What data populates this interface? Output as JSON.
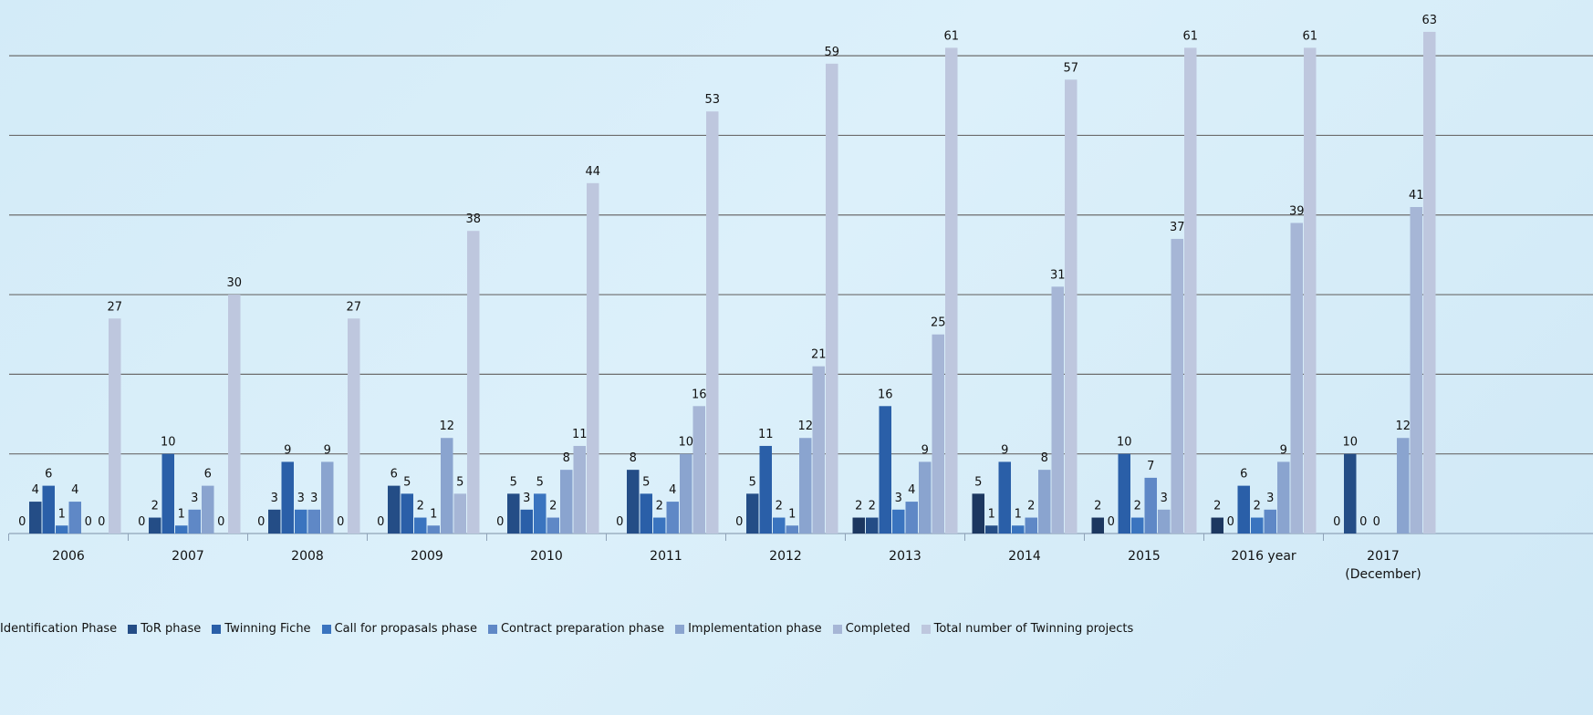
{
  "chart_data": {
    "type": "bar",
    "categories": [
      "2006",
      "2007",
      "2008",
      "2009",
      "2010",
      "2011",
      "2012",
      "2013",
      "2014",
      "2015",
      "2016 year",
      "2017 (December)"
    ],
    "series": [
      {
        "name": "Identification Phase",
        "color": "#1c3760",
        "values": [
          0,
          0,
          0,
          0,
          0,
          0,
          0,
          2,
          5,
          2,
          2,
          0
        ]
      },
      {
        "name": "ToR phase",
        "color": "#244d86",
        "values": [
          4,
          2,
          3,
          6,
          5,
          8,
          5,
          2,
          1,
          0,
          0,
          10
        ]
      },
      {
        "name": "Twinning Fiche",
        "color": "#2a5fa8",
        "values": [
          6,
          10,
          9,
          5,
          3,
          5,
          11,
          16,
          9,
          10,
          6,
          0
        ]
      },
      {
        "name": "Call for propasals phase",
        "color": "#3a74bf",
        "values": [
          1,
          1,
          3,
          2,
          5,
          2,
          2,
          3,
          1,
          2,
          2,
          0
        ]
      },
      {
        "name": "Contract preparation phase",
        "color": "#5f88c6",
        "values": [
          4,
          3,
          3,
          1,
          2,
          4,
          1,
          4,
          2,
          7,
          3,
          null
        ]
      },
      {
        "name": "Implementation phase",
        "color": "#8aa4cf",
        "values": [
          0,
          6,
          9,
          12,
          8,
          10,
          12,
          9,
          8,
          3,
          9,
          12
        ]
      },
      {
        "name": "Completed",
        "color": "#a6b6d6",
        "values": [
          0,
          0,
          0,
          5,
          11,
          16,
          21,
          25,
          31,
          37,
          39,
          41
        ]
      },
      {
        "name": "Total number of Twinning projects",
        "color": "#bec7de",
        "values": [
          27,
          30,
          27,
          38,
          44,
          53,
          59,
          61,
          57,
          61,
          61,
          63
        ]
      }
    ],
    "ylim": [
      0,
      67
    ],
    "yticks": [
      0,
      10,
      20,
      30,
      40,
      50,
      60
    ],
    "grid": true
  }
}
